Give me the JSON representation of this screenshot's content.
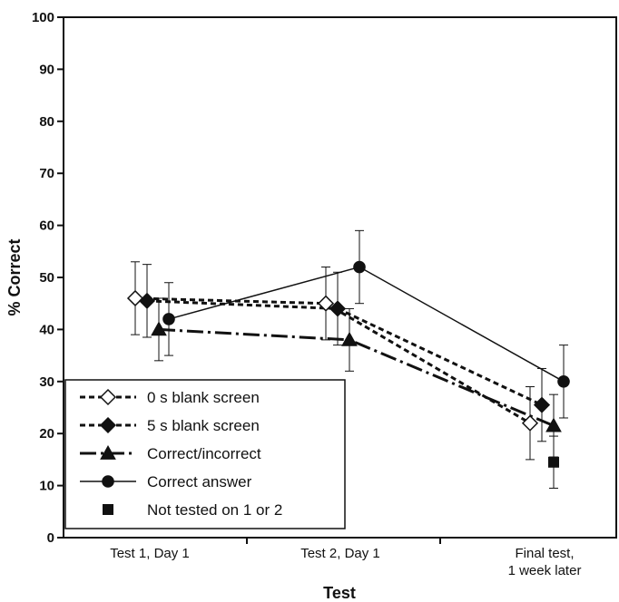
{
  "chart_data": {
    "type": "line",
    "title": "",
    "xlabel": "Test",
    "ylabel": "% Correct",
    "categories": [
      "Test 1, Day 1",
      "Test 2, Day 1",
      "Final test,|1 week later"
    ],
    "ylim": [
      0,
      100
    ],
    "yticks": [
      0,
      10,
      20,
      30,
      40,
      50,
      60,
      70,
      80,
      90,
      100
    ],
    "grid": false,
    "legend_position": "bottom-left",
    "series": [
      {
        "name": "0 s blank screen",
        "marker": "diamond-open",
        "line": "dotted",
        "values": [
          46,
          45,
          22
        ],
        "errors": [
          7,
          7,
          7
        ]
      },
      {
        "name": "5 s blank screen",
        "marker": "diamond-filled",
        "line": "dotted",
        "values": [
          45.5,
          44,
          25.5
        ],
        "errors": [
          7,
          7,
          7
        ]
      },
      {
        "name": "Correct/incorrect",
        "marker": "triangle-filled",
        "line": "dash-dot",
        "values": [
          40,
          38,
          21.5
        ],
        "errors": [
          6,
          6,
          6
        ]
      },
      {
        "name": "Correct answer",
        "marker": "circle-filled",
        "line": "solid",
        "values": [
          42,
          52,
          30
        ],
        "errors": [
          7,
          7,
          7
        ]
      },
      {
        "name": "Not tested on 1 or 2",
        "marker": "square-filled",
        "line": "none",
        "values": [
          null,
          null,
          14.5
        ],
        "errors": [
          null,
          null,
          5
        ]
      }
    ]
  },
  "colors": {
    "ink": "#111111",
    "background": "#ffffff"
  }
}
